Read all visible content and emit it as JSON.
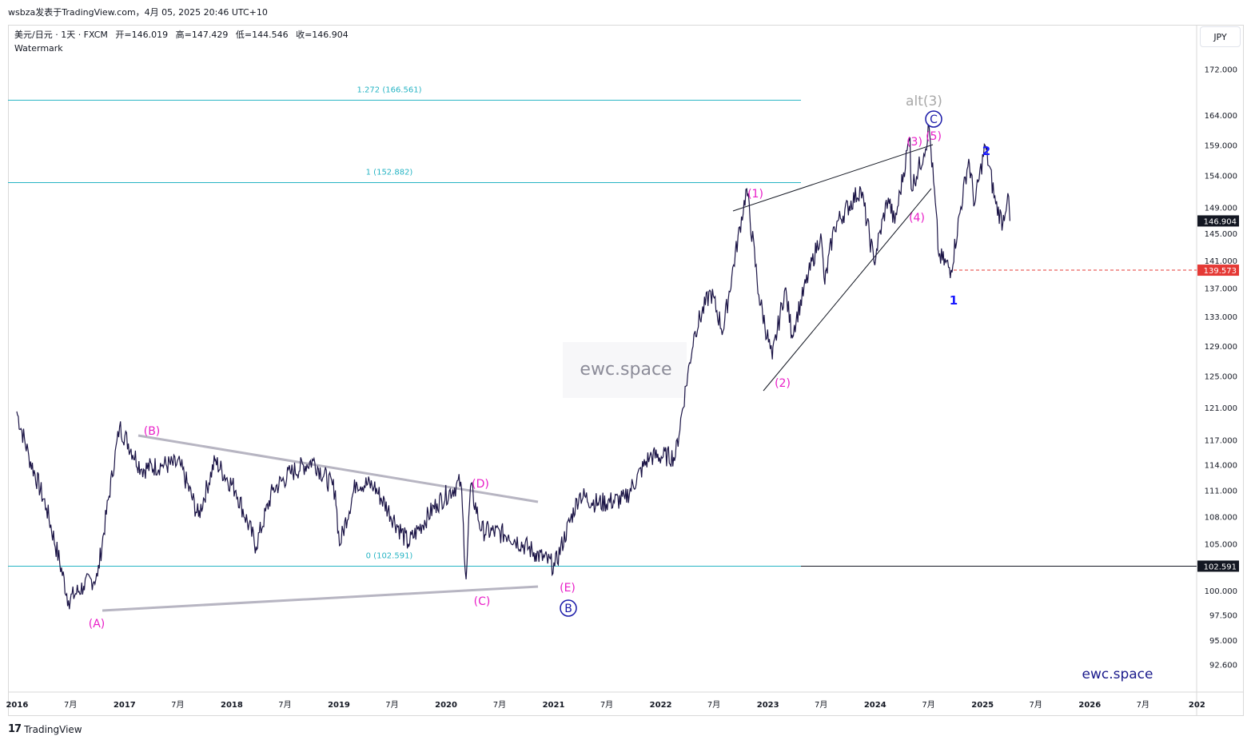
{
  "header": {
    "publisher_line": "wsbza发表于TradingView.com，4月 05, 2025 20:46 UTC+10"
  },
  "legend": {
    "symbol": "美元/日元 · 1天 · FXCM",
    "open": "开=146.019",
    "high": "高=147.429",
    "low": "低=144.546",
    "close": "收=146.904",
    "watermark_label": "Watermark"
  },
  "currency_button": "JPY",
  "footer": {
    "brand": "TradingView"
  },
  "chart_data": {
    "type": "line",
    "symbol": "USD/JPY",
    "timeframe": "1D",
    "source": "FXCM",
    "y_axis": {
      "ticks": [
        "172.000",
        "164.000",
        "159.000",
        "154.000",
        "149.000",
        "145.000",
        "141.000",
        "137.000",
        "133.000",
        "129.000",
        "125.000",
        "121.000",
        "117.000",
        "114.000",
        "111.000",
        "108.000",
        "105.000",
        "100.000",
        "97.500",
        "95.000",
        "92.600"
      ],
      "scale": "log"
    },
    "x_axis": {
      "ticks": [
        "2016",
        "7月",
        "2017",
        "7月",
        "2018",
        "7月",
        "2019",
        "7月",
        "2020",
        "7月",
        "2021",
        "7月",
        "2022",
        "7月",
        "2023",
        "7月",
        "2024",
        "7月",
        "2025",
        "7月",
        "2026",
        "7月",
        "202"
      ]
    },
    "price_labels": {
      "last": "146.904",
      "dashed_level": "139.573",
      "fib_zero": "102.591"
    },
    "fib_levels": [
      {
        "label": "1.272 (166.561)",
        "value": 166.561
      },
      {
        "label": "1 (152.882)",
        "value": 152.882
      },
      {
        "label": "0 (102.591)",
        "value": 102.591
      }
    ],
    "series": [
      {
        "values": [
          [
            "2015-12-31",
            120.5
          ],
          [
            "2016-02-10",
            115.0
          ],
          [
            "2016-04-10",
            109.0
          ],
          [
            "2016-06-24",
            99.0
          ],
          [
            "2016-08-15",
            100.5
          ],
          [
            "2016-10-01",
            101.5
          ],
          [
            "2016-12-15",
            118.6
          ],
          [
            "2017-03-01",
            113.5
          ],
          [
            "2017-05-10",
            114.0
          ],
          [
            "2017-07-10",
            114.0
          ],
          [
            "2017-09-10",
            108.0
          ],
          [
            "2017-11-05",
            114.5
          ],
          [
            "2018-01-15",
            111.0
          ],
          [
            "2018-03-25",
            104.7
          ],
          [
            "2018-05-20",
            111.0
          ],
          [
            "2018-07-20",
            113.0
          ],
          [
            "2018-10-05",
            114.5
          ],
          [
            "2018-12-20",
            111.0
          ],
          [
            "2019-01-03",
            104.8
          ],
          [
            "2019-03-01",
            112.0
          ],
          [
            "2019-05-01",
            111.5
          ],
          [
            "2019-08-25",
            105.0
          ],
          [
            "2019-12-01",
            109.5
          ],
          [
            "2020-02-20",
            112.0
          ],
          [
            "2020-03-09",
            101.2
          ],
          [
            "2020-03-24",
            111.5
          ],
          [
            "2020-05-01",
            106.5
          ],
          [
            "2020-08-01",
            106.0
          ],
          [
            "2020-11-01",
            104.0
          ],
          [
            "2021-01-05",
            102.6
          ],
          [
            "2021-03-30",
            110.5
          ],
          [
            "2021-06-01",
            109.5
          ],
          [
            "2021-09-01",
            110.0
          ],
          [
            "2021-11-25",
            115.0
          ],
          [
            "2022-02-20",
            115.0
          ],
          [
            "2022-04-28",
            131.0
          ],
          [
            "2022-06-20",
            136.5
          ],
          [
            "2022-08-01",
            131.0
          ],
          [
            "2022-10-21",
            151.9
          ],
          [
            "2022-12-01",
            136.0
          ],
          [
            "2023-01-16",
            127.2
          ],
          [
            "2023-03-01",
            137.0
          ],
          [
            "2023-03-24",
            130.5
          ],
          [
            "2023-06-30",
            145.0
          ],
          [
            "2023-07-14",
            137.5
          ],
          [
            "2023-08-15",
            146.0
          ],
          [
            "2023-11-13",
            151.9
          ],
          [
            "2023-12-28",
            140.8
          ],
          [
            "2024-02-15",
            150.5
          ],
          [
            "2024-03-08",
            146.5
          ],
          [
            "2024-04-29",
            160.2
          ],
          [
            "2024-05-03",
            151.9
          ],
          [
            "2024-06-15",
            157.5
          ],
          [
            "2024-07-03",
            161.9
          ],
          [
            "2024-08-05",
            141.7
          ],
          [
            "2024-09-16",
            139.6
          ],
          [
            "2024-11-15",
            156.7
          ],
          [
            "2024-12-05",
            149.5
          ],
          [
            "2025-01-10",
            158.9
          ],
          [
            "2025-02-15",
            149.5
          ],
          [
            "2025-03-11",
            146.6
          ],
          [
            "2025-03-28",
            151.2
          ],
          [
            "2025-04-04",
            146.9
          ]
        ]
      }
    ],
    "annotations": [
      {
        "text": "(A)",
        "color": "#e91ec8"
      },
      {
        "text": "(B)",
        "color": "#e91ec8"
      },
      {
        "text": "(C)",
        "color": "#e91ec8"
      },
      {
        "text": "(D)",
        "color": "#e91ec8"
      },
      {
        "text": "(E)",
        "color": "#e91ec8"
      },
      {
        "text": "B",
        "color": "#1a1aa8",
        "circled": true
      },
      {
        "text": "(1)",
        "color": "#e91ec8"
      },
      {
        "text": "(2)",
        "color": "#e91ec8"
      },
      {
        "text": "(3)",
        "color": "#e91ec8"
      },
      {
        "text": "(4)",
        "color": "#e91ec8"
      },
      {
        "text": "(5)",
        "color": "#e91ec8"
      },
      {
        "text": "C",
        "color": "#1a1aa8",
        "circled": true
      },
      {
        "text": "alt(3)",
        "color": "#a8a8a8"
      },
      {
        "text": "1",
        "color": "#1a1aff"
      },
      {
        "text": "2",
        "color": "#1a1aff"
      }
    ],
    "watermarks": [
      "ewc.space",
      "ewc.space"
    ],
    "colors": {
      "price_line": "#1b1446",
      "fib_line": "#26b4c4",
      "wave_label": "#e91ec8",
      "degree_label": "#1a1aa8",
      "dashed_level": "#e53935",
      "triangle_line": "#b7b5c2"
    }
  }
}
